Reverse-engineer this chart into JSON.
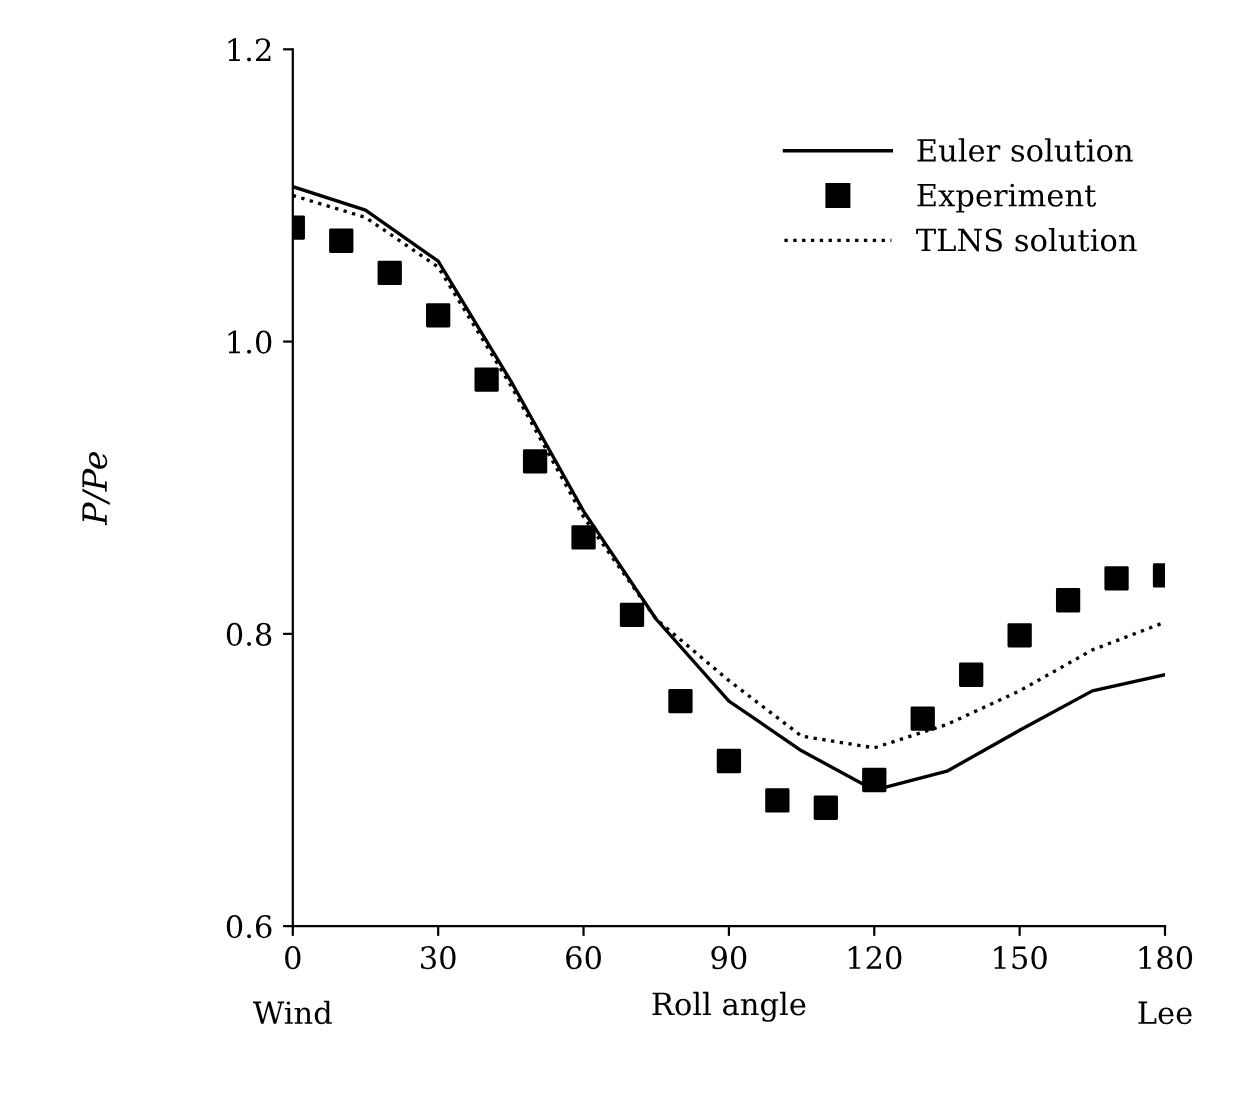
{
  "chart_data": {
    "type": "line",
    "xlabel": "Roll angle",
    "ylabel": "P/Pe",
    "xlim": [
      0,
      180
    ],
    "ylim": [
      0.6,
      1.2
    ],
    "xticks": [
      0,
      30,
      60,
      90,
      120,
      150,
      180
    ],
    "yticks": [
      {
        "value": 0.6,
        "label": "0.6"
      },
      {
        "value": 0.8,
        "label": "0.8"
      },
      {
        "value": 1.0,
        "label": "1.0"
      },
      {
        "value": 1.2,
        "label": "1.2"
      }
    ],
    "grid": false,
    "legend": "top right",
    "annotations": [
      "Wind",
      "Lee"
    ],
    "series": [
      {
        "name": "Euler solution",
        "line_style": "solid",
        "color": "#000000",
        "x": [
          0,
          15,
          30,
          45,
          60,
          75,
          90,
          105,
          120,
          135,
          150,
          165,
          180
        ],
        "values": [
          1.106,
          1.09,
          1.055,
          0.973,
          0.884,
          0.81,
          0.754,
          0.72,
          0.693,
          0.706,
          0.734,
          0.761,
          0.772
        ]
      },
      {
        "name": "Experiment",
        "type": "scatter",
        "marker": "square",
        "color": "#000000",
        "x": [
          0,
          10,
          20,
          30,
          40,
          50,
          60,
          70,
          80,
          90,
          100,
          110,
          120,
          130,
          140,
          150,
          160,
          170,
          180
        ],
        "values": [
          1.078,
          1.069,
          1.047,
          1.018,
          0.974,
          0.918,
          0.866,
          0.813,
          0.754,
          0.713,
          0.686,
          0.681,
          0.7,
          0.742,
          0.772,
          0.799,
          0.823,
          0.838,
          0.84
        ]
      },
      {
        "name": "TLNS solution",
        "line_style": "dotted",
        "color": "#000000",
        "x": [
          0,
          15,
          30,
          45,
          60,
          75,
          90,
          105,
          120,
          135,
          150,
          165,
          180
        ],
        "values": [
          1.1,
          1.085,
          1.051,
          0.97,
          0.88,
          0.81,
          0.768,
          0.73,
          0.722,
          0.738,
          0.761,
          0.789,
          0.808
        ]
      }
    ]
  }
}
